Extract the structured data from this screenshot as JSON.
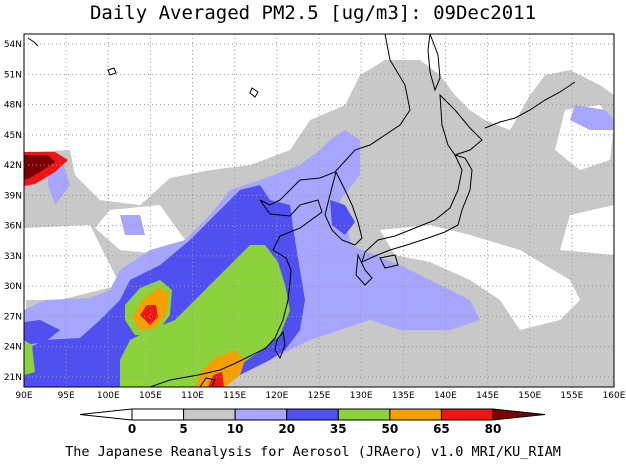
{
  "title": "Daily Averaged PM2.5 [ug/m3]: 09Dec2011",
  "credit": "The Japanese Reanalysis for Aerosol (JRAero) v1.0 MRI/KU_RIAM",
  "map": {
    "lon_range": [
      90,
      160
    ],
    "lat_range": [
      20,
      55
    ],
    "grid": true,
    "lon_ticks": [
      "90E",
      "95E",
      "100E",
      "105E",
      "110E",
      "115E",
      "120E",
      "125E",
      "130E",
      "135E",
      "140E",
      "145E",
      "150E",
      "155E",
      "160E"
    ],
    "lat_ticks": [
      "21N",
      "24N",
      "27N",
      "30N",
      "33N",
      "36N",
      "39N",
      "42N",
      "45N",
      "48N",
      "51N",
      "54N"
    ]
  },
  "colorbar": {
    "levels": [
      "0",
      "5",
      "10",
      "20",
      "35",
      "50",
      "65",
      "80"
    ],
    "colors": [
      "#ffffff",
      "#ffffff",
      "#c8c8c8",
      "#a6a6ff",
      "#5050f0",
      "#8cd23c",
      "#f5a000",
      "#f01414",
      "#7a0000"
    ]
  }
}
